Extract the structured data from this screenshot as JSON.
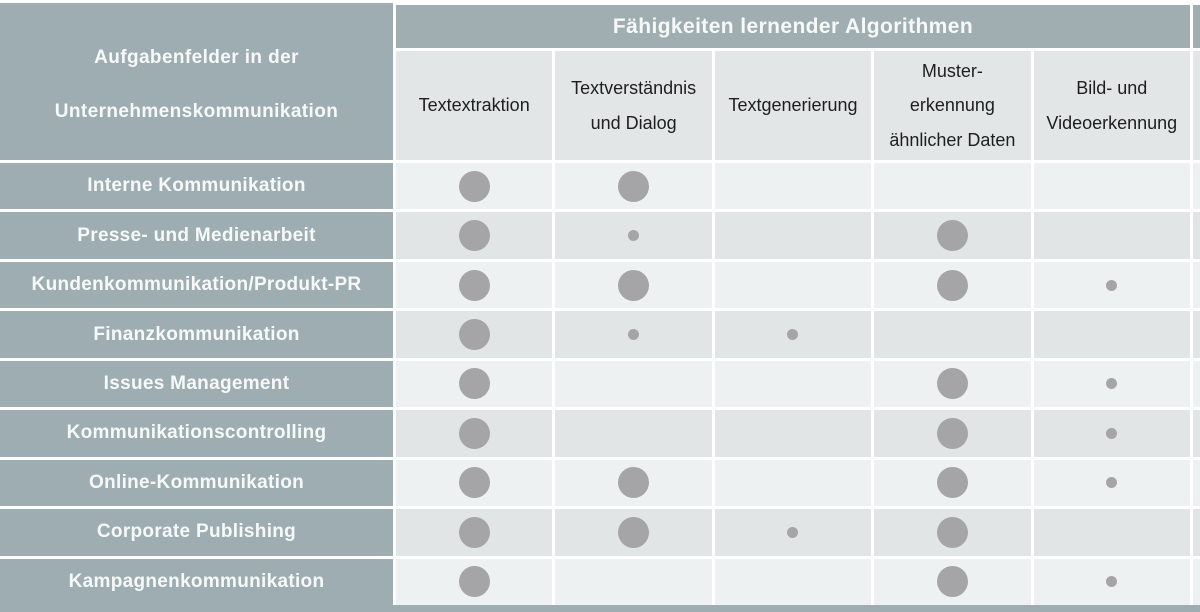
{
  "colors": {
    "blue_gray_header": "#9dadb2",
    "band_bg": "#a0aeb2",
    "column_header_bg": "#e3e6e7",
    "row_light": "#eef1f2",
    "row_dark": "#e1e5e6",
    "dot": "#a5a5a7",
    "text_on_gray": "#f7f9f9",
    "text_on_light": "#1e1e1e"
  },
  "table": {
    "row_header_title": "Aufgabenfelder in der\nUnternehmenskommunikation",
    "col_group_title": "Fähigkeiten lernender Algorithmen",
    "columns": [
      {
        "label": "Textextraktion"
      },
      {
        "label": "Textverständnis\nund Dialog"
      },
      {
        "label": "Textgenerierung"
      },
      {
        "label": "Muster-\nerkennung\nähnlicher Daten"
      },
      {
        "label": "Bild- und\nVideoerkennung"
      }
    ],
    "rows": [
      {
        "label": "Interne Kommunikation",
        "dots": [
          "large",
          "large",
          "",
          "",
          ""
        ]
      },
      {
        "label": "Presse- und Medienarbeit",
        "dots": [
          "large",
          "small",
          "",
          "large",
          ""
        ]
      },
      {
        "label": "Kundenkommunikation/Produkt-PR",
        "dots": [
          "large",
          "large",
          "",
          "large",
          "small"
        ]
      },
      {
        "label": "Finanzkommunikation",
        "dots": [
          "large",
          "small",
          "small",
          "",
          ""
        ]
      },
      {
        "label": "Issues Management",
        "dots": [
          "large",
          "",
          "",
          "large",
          "small"
        ]
      },
      {
        "label": "Kommunikationscontrolling",
        "dots": [
          "large",
          "",
          "",
          "large",
          "small"
        ]
      },
      {
        "label": "Online-Kommunikation",
        "dots": [
          "large",
          "large",
          "",
          "large",
          "small"
        ]
      },
      {
        "label": "Corporate Publishing",
        "dots": [
          "large",
          "large",
          "small",
          "large",
          ""
        ]
      },
      {
        "label": "Kampagnenkommunikation",
        "dots": [
          "large",
          "",
          "",
          "large",
          "small"
        ]
      }
    ]
  },
  "chart_data": {
    "type": "table",
    "title": "Fähigkeiten lernender Algorithmen",
    "row_axis_label": "Aufgabenfelder in der Unternehmenskommunikation",
    "columns": [
      "Textextraktion",
      "Textverständnis und Dialog",
      "Textgenerierung",
      "Muster-erkennung ähnlicher Daten",
      "Bild- und Videoerkennung"
    ],
    "rows": [
      {
        "name": "Interne Kommunikation",
        "values": [
          2,
          2,
          0,
          0,
          0
        ]
      },
      {
        "name": "Presse- und Medienarbeit",
        "values": [
          2,
          1,
          0,
          2,
          0
        ]
      },
      {
        "name": "Kundenkommunikation/Produkt-PR",
        "values": [
          2,
          2,
          0,
          2,
          1
        ]
      },
      {
        "name": "Finanzkommunikation",
        "values": [
          2,
          1,
          1,
          0,
          0
        ]
      },
      {
        "name": "Issues Management",
        "values": [
          2,
          0,
          0,
          2,
          1
        ]
      },
      {
        "name": "Kommunikationscontrolling",
        "values": [
          2,
          0,
          0,
          2,
          1
        ]
      },
      {
        "name": "Online-Kommunikation",
        "values": [
          2,
          2,
          0,
          2,
          1
        ]
      },
      {
        "name": "Corporate Publishing",
        "values": [
          2,
          2,
          1,
          2,
          0
        ]
      },
      {
        "name": "Kampagnenkommunikation",
        "values": [
          2,
          0,
          0,
          2,
          1
        ]
      }
    ],
    "value_encoding": {
      "0": "no dot",
      "1": "small dot",
      "2": "large dot"
    },
    "layout": {
      "dot_color": "#a5a5a7",
      "alternating_row_shading": true
    }
  }
}
